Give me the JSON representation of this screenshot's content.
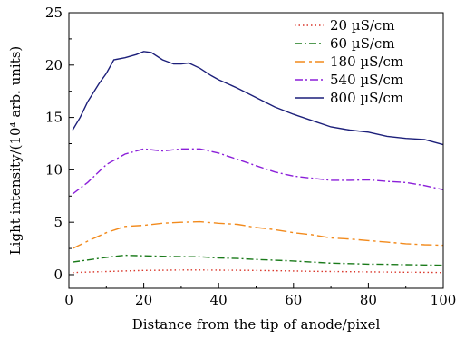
{
  "chart_data": {
    "type": "line",
    "xlabel": "Distance from the tip of anode/pixel",
    "ylabel": "Light intensity/(10⁴ arb. units)",
    "xlim": [
      0,
      100
    ],
    "ylim": [
      -1.3,
      25
    ],
    "xticks": [
      0,
      20,
      40,
      60,
      80,
      100
    ],
    "yticks": [
      0,
      5,
      10,
      15,
      20,
      25
    ],
    "grid": false,
    "legend_position": "top-right",
    "series": [
      {
        "name": "20 µS/cm",
        "color": "#d9372b",
        "dash": "1.5 3",
        "x": [
          1,
          5,
          10,
          15,
          20,
          25,
          30,
          35,
          40,
          45,
          50,
          55,
          60,
          65,
          70,
          75,
          80,
          85,
          90,
          95,
          100
        ],
        "y": [
          0.2,
          0.25,
          0.3,
          0.35,
          0.4,
          0.42,
          0.45,
          0.45,
          0.43,
          0.42,
          0.4,
          0.38,
          0.35,
          0.32,
          0.3,
          0.28,
          0.27,
          0.25,
          0.23,
          0.22,
          0.2
        ]
      },
      {
        "name": "60 µS/cm",
        "color": "#1a7a1a",
        "dash": "8 3 2 3",
        "x": [
          1,
          5,
          10,
          15,
          20,
          25,
          30,
          35,
          40,
          45,
          50,
          55,
          60,
          65,
          70,
          75,
          80,
          85,
          90,
          95,
          100
        ],
        "y": [
          1.2,
          1.4,
          1.65,
          1.85,
          1.8,
          1.75,
          1.72,
          1.7,
          1.6,
          1.55,
          1.45,
          1.38,
          1.3,
          1.2,
          1.1,
          1.05,
          1.0,
          0.98,
          0.95,
          0.92,
          0.9
        ]
      },
      {
        "name": "180 µS/cm",
        "color": "#f28a1c",
        "dash": "12 4 3 4",
        "x": [
          1,
          5,
          10,
          15,
          20,
          25,
          30,
          35,
          40,
          45,
          50,
          55,
          60,
          65,
          70,
          75,
          80,
          85,
          90,
          95,
          100
        ],
        "y": [
          2.5,
          3.2,
          4.0,
          4.6,
          4.7,
          4.9,
          5.0,
          5.05,
          4.9,
          4.8,
          4.5,
          4.3,
          4.0,
          3.8,
          3.5,
          3.4,
          3.25,
          3.1,
          2.95,
          2.85,
          2.8
        ]
      },
      {
        "name": "540 µS/cm",
        "color": "#8b1fd9",
        "dash": "9 3 2 3",
        "x": [
          1,
          5,
          10,
          15,
          20,
          25,
          30,
          35,
          40,
          45,
          50,
          55,
          60,
          65,
          70,
          75,
          80,
          85,
          90,
          95,
          100
        ],
        "y": [
          7.7,
          8.8,
          10.5,
          11.5,
          12.0,
          11.8,
          12.0,
          12.0,
          11.6,
          11.0,
          10.4,
          9.8,
          9.4,
          9.2,
          9.0,
          9.0,
          9.05,
          8.9,
          8.8,
          8.5,
          8.1
        ]
      },
      {
        "name": "800 µS/cm",
        "color": "#1c1f7a",
        "dash": "",
        "x": [
          1,
          3,
          5,
          8,
          10,
          12,
          15,
          18,
          20,
          22,
          25,
          28,
          30,
          32,
          35,
          38,
          40,
          45,
          50,
          55,
          60,
          65,
          70,
          75,
          80,
          85,
          90,
          95,
          100
        ],
        "y": [
          13.8,
          15.0,
          16.5,
          18.2,
          19.2,
          20.5,
          20.7,
          21.0,
          21.3,
          21.2,
          20.5,
          20.1,
          20.1,
          20.2,
          19.7,
          19.0,
          18.6,
          17.8,
          16.9,
          16.0,
          15.3,
          14.7,
          14.1,
          13.8,
          13.6,
          13.2,
          13.0,
          12.9,
          12.4
        ]
      }
    ]
  }
}
